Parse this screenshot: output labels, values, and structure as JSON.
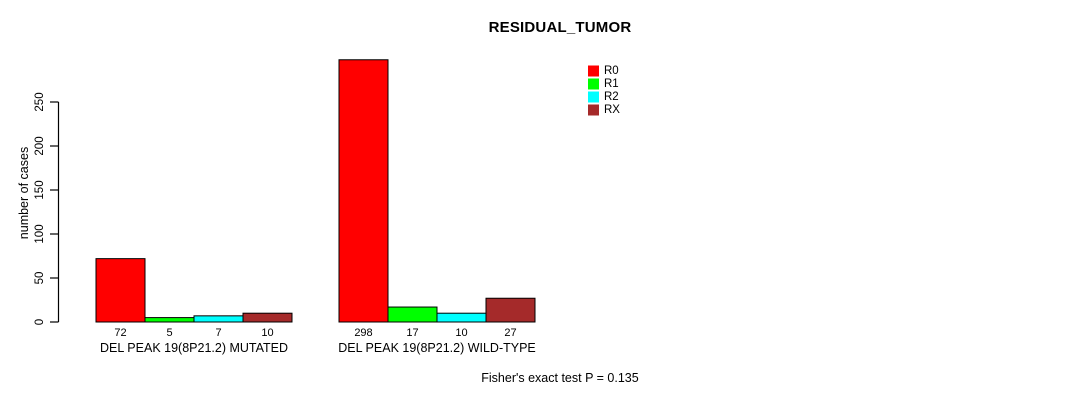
{
  "chart_data": {
    "type": "bar",
    "title": "RESIDUAL_TUMOR",
    "ylabel": "number of cases",
    "xlabel": "",
    "yticks": [
      0,
      50,
      100,
      150,
      200,
      250
    ],
    "ylim": [
      0,
      305
    ],
    "grid": false,
    "legend_position": "top-right",
    "bar_value_labels": true,
    "categories": [
      "DEL PEAK 19(8P21.2) MUTATED",
      "DEL PEAK 19(8P21.2) WILD-TYPE"
    ],
    "series": [
      {
        "name": "R0",
        "color": "#FF0000",
        "values": [
          72,
          298
        ]
      },
      {
        "name": "R1",
        "color": "#00FF00",
        "values": [
          5,
          17
        ]
      },
      {
        "name": "R2",
        "color": "#00FFFF",
        "values": [
          7,
          10
        ]
      },
      {
        "name": "RX",
        "color": "#A52A2A",
        "values": [
          10,
          27
        ]
      }
    ],
    "annotation": "Fisher's exact test P = 0.135"
  }
}
